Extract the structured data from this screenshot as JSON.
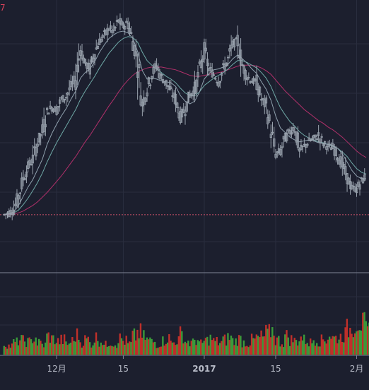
{
  "corner_label": "7",
  "colors": {
    "background": "#1c1f2e",
    "grid": "#2a2e3f",
    "candle": "#9aa3ae",
    "ma_fast": "#8fa0ad",
    "ma_mid": "#6fa8a6",
    "ma_slow": "#b0306a",
    "dashed_level": "#d0506a",
    "volume_up": "#3a9a3a",
    "volume_down": "#c0302a",
    "axis_text": "#b8bcc8"
  },
  "chart_data": {
    "type": "candlestick",
    "x_tick_labels": [
      "12月",
      "15",
      "2017",
      "15",
      "2月"
    ],
    "x_tick_index": [
      11,
      25,
      42,
      57,
      74
    ],
    "grid": true,
    "dashed_level_index": 0,
    "price_series": [
      9.6,
      9.8,
      10.2,
      11.6,
      13.5,
      14.8,
      15.6,
      17.4,
      18.6,
      20.8,
      21.2,
      21.0,
      22.1,
      22.4,
      23.5,
      24.3,
      27.6,
      26.0,
      25.4,
      27.2,
      28.4,
      29.0,
      29.8,
      29.4,
      30.6,
      30.0,
      30.4,
      28.4,
      26.2,
      21.6,
      23.2,
      24.8,
      25.8,
      24.5,
      23.9,
      22.9,
      22.1,
      20.2,
      21.1,
      22.6,
      23.1,
      25.2,
      27.4,
      25.4,
      24.8,
      24.1,
      25.4,
      26.4,
      28.1,
      28.4,
      25.8,
      24.6,
      24.1,
      23.9,
      22.1,
      21.3,
      18.8,
      16.1,
      16.5,
      17.9,
      18.6,
      19.2,
      16.5,
      17.0,
      17.6,
      17.8,
      18.2,
      17.3,
      17.0,
      16.8,
      16.1,
      15.0,
      13.6,
      12.5,
      12.4,
      13.2,
      13.8
    ],
    "ma_fast": [
      9.6,
      9.7,
      9.9,
      10.6,
      11.6,
      12.6,
      13.4,
      14.5,
      15.6,
      17.2,
      18.4,
      19.4,
      20.3,
      21.1,
      22.1,
      23.0,
      24.4,
      25.0,
      25.4,
      26.2,
      27.2,
      28.0,
      28.7,
      29.1,
      29.4,
      29.5,
      29.3,
      28.7,
      27.3,
      25.2,
      24.3,
      24.4,
      24.3,
      24.1,
      24.0,
      23.9,
      23.5,
      22.5,
      21.9,
      21.6,
      21.9,
      22.9,
      24.3,
      24.9,
      25.3,
      25.4,
      25.6,
      25.9,
      26.5,
      26.9,
      26.5,
      26.0,
      25.4,
      24.9,
      24.0,
      23.2,
      22.0,
      20.3,
      19.0,
      18.5,
      18.0,
      17.7,
      17.5,
      17.6,
      17.7,
      17.6,
      17.4,
      17.3,
      17.2,
      17.1,
      16.8,
      16.2,
      15.3,
      14.4,
      13.8,
      13.5,
      13.5
    ],
    "ma_mid": [
      9.6,
      9.7,
      9.8,
      10.1,
      10.7,
      11.4,
      12.2,
      13.1,
      14.1,
      15.3,
      16.4,
      17.4,
      18.3,
      19.2,
      20.1,
      21.0,
      22.1,
      23.0,
      23.8,
      24.6,
      25.5,
      26.3,
      27.1,
      27.7,
      28.3,
      28.7,
      28.9,
      28.8,
      28.3,
      27.2,
      26.3,
      25.8,
      25.4,
      25.0,
      24.6,
      24.3,
      23.9,
      23.3,
      22.8,
      22.5,
      22.5,
      22.9,
      23.6,
      24.0,
      24.4,
      24.7,
      25.0,
      25.4,
      25.9,
      26.3,
      26.3,
      26.1,
      25.8,
      25.5,
      25.0,
      24.4,
      23.5,
      22.3,
      21.2,
      20.4,
      19.7,
      19.2,
      18.6,
      18.2,
      17.9,
      17.7,
      17.5,
      17.4,
      17.2,
      17.0,
      16.8,
      16.4,
      15.9,
      15.2,
      14.6,
      14.2,
      14.0
    ],
    "ma_slow": [
      9.6,
      9.6,
      9.7,
      9.8,
      10.0,
      10.3,
      10.6,
      11.0,
      11.5,
      12.0,
      12.6,
      13.2,
      13.8,
      14.5,
      15.2,
      15.9,
      16.7,
      17.5,
      18.2,
      19.0,
      19.8,
      20.6,
      21.4,
      22.1,
      22.9,
      23.6,
      24.2,
      24.7,
      25.1,
      25.3,
      25.5,
      25.6,
      25.6,
      25.6,
      25.5,
      25.4,
      25.3,
      25.1,
      24.9,
      24.7,
      24.6,
      24.6,
      24.7,
      24.8,
      24.9,
      25.0,
      25.1,
      25.3,
      25.5,
      25.7,
      25.8,
      25.8,
      25.8,
      25.7,
      25.5,
      25.2,
      24.8,
      24.2,
      23.6,
      23.0,
      22.5,
      22.0,
      21.5,
      21.0,
      20.6,
      20.2,
      19.8,
      19.5,
      19.1,
      18.8,
      18.4,
      18.0,
      17.5,
      17.0,
      16.5,
      16.1,
      15.8
    ],
    "volume": [
      22,
      18,
      25,
      30,
      28,
      26,
      35,
      24,
      20,
      38,
      32,
      27,
      30,
      22,
      28,
      40,
      26,
      31,
      24,
      35,
      29,
      20,
      27,
      23,
      33,
      28,
      22,
      38,
      45,
      36,
      30,
      26,
      22,
      28,
      34,
      25,
      30,
      42,
      27,
      24,
      31,
      22,
      29,
      33,
      27,
      25,
      30,
      35,
      28,
      32,
      26,
      24,
      30,
      34,
      36,
      44,
      50,
      30,
      26,
      38,
      31,
      28,
      35,
      30,
      25,
      33,
      29,
      31,
      40,
      34,
      36,
      42,
      52,
      60,
      70,
      62,
      48
    ],
    "volume_up": [
      true,
      false,
      true,
      true,
      false,
      true,
      true,
      false,
      true,
      true,
      false,
      true,
      false,
      true,
      true,
      true,
      false,
      false,
      true,
      true,
      false,
      true,
      true,
      false,
      true,
      false,
      true,
      false,
      false,
      false,
      true,
      true,
      false,
      false,
      false,
      false,
      false,
      false,
      true,
      true,
      true,
      true,
      true,
      false,
      false,
      false,
      true,
      true,
      true,
      true,
      false,
      false,
      false,
      false,
      false,
      false,
      false,
      true,
      true,
      true,
      true,
      false,
      true,
      true,
      true,
      true,
      false,
      false,
      false,
      false,
      false,
      false,
      false,
      false,
      true,
      true,
      true
    ],
    "volume_max": 80
  }
}
